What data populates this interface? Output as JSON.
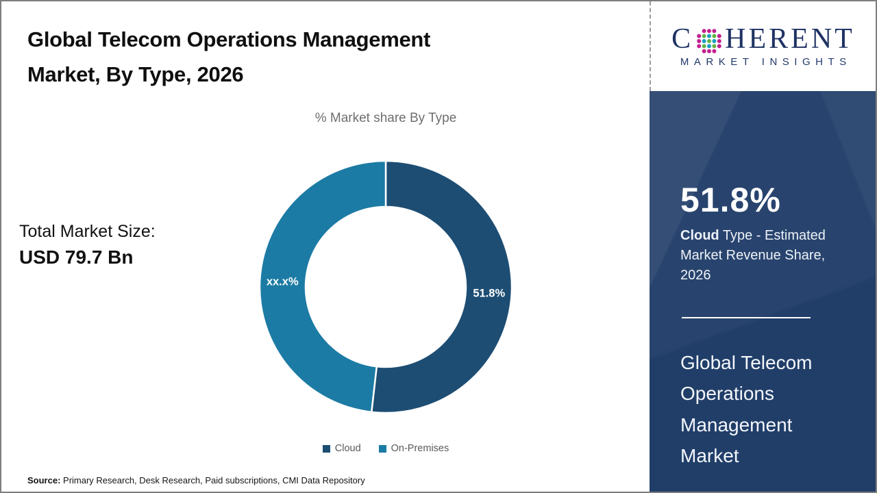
{
  "header": {
    "title_line1": "Global Telecom Operations Management",
    "title_line2": "Market, By Type, 2026"
  },
  "left_panel": {
    "total_label": "Total Market Size:",
    "total_value": "USD 79.7 Bn",
    "source_label": "Source:",
    "source_text": " Primary Research, Desk Research, Paid subscriptions, CMI Data Repository"
  },
  "chart_data": {
    "type": "pie",
    "donut": true,
    "title": "% Market share By Type",
    "categories": [
      "Cloud",
      "On-Premises"
    ],
    "values": [
      51.8,
      48.2
    ],
    "slice_labels": [
      "51.8%",
      "xx.x%"
    ],
    "colors": [
      "#1d4d73",
      "#1c7ba4"
    ],
    "start_angle_deg": 0,
    "direction": "clockwise",
    "legend_position": "bottom",
    "inner_radius_ratio": 0.635
  },
  "sidebar": {
    "logo": {
      "part1": "C",
      "part2": "HERENT",
      "subtext": "MARKET INSIGHTS",
      "globe_colors": {
        "outer": "#c2208e",
        "teal": "#189fc4",
        "green": "#63b446"
      }
    },
    "stat_value": "51.8%",
    "stat_desc_bold": "Cloud",
    "stat_desc_rest": " Type - Estimated Market Revenue Share, 2026",
    "market_name": "Global Telecom Operations Management Market",
    "panel_color": "#213e69"
  }
}
